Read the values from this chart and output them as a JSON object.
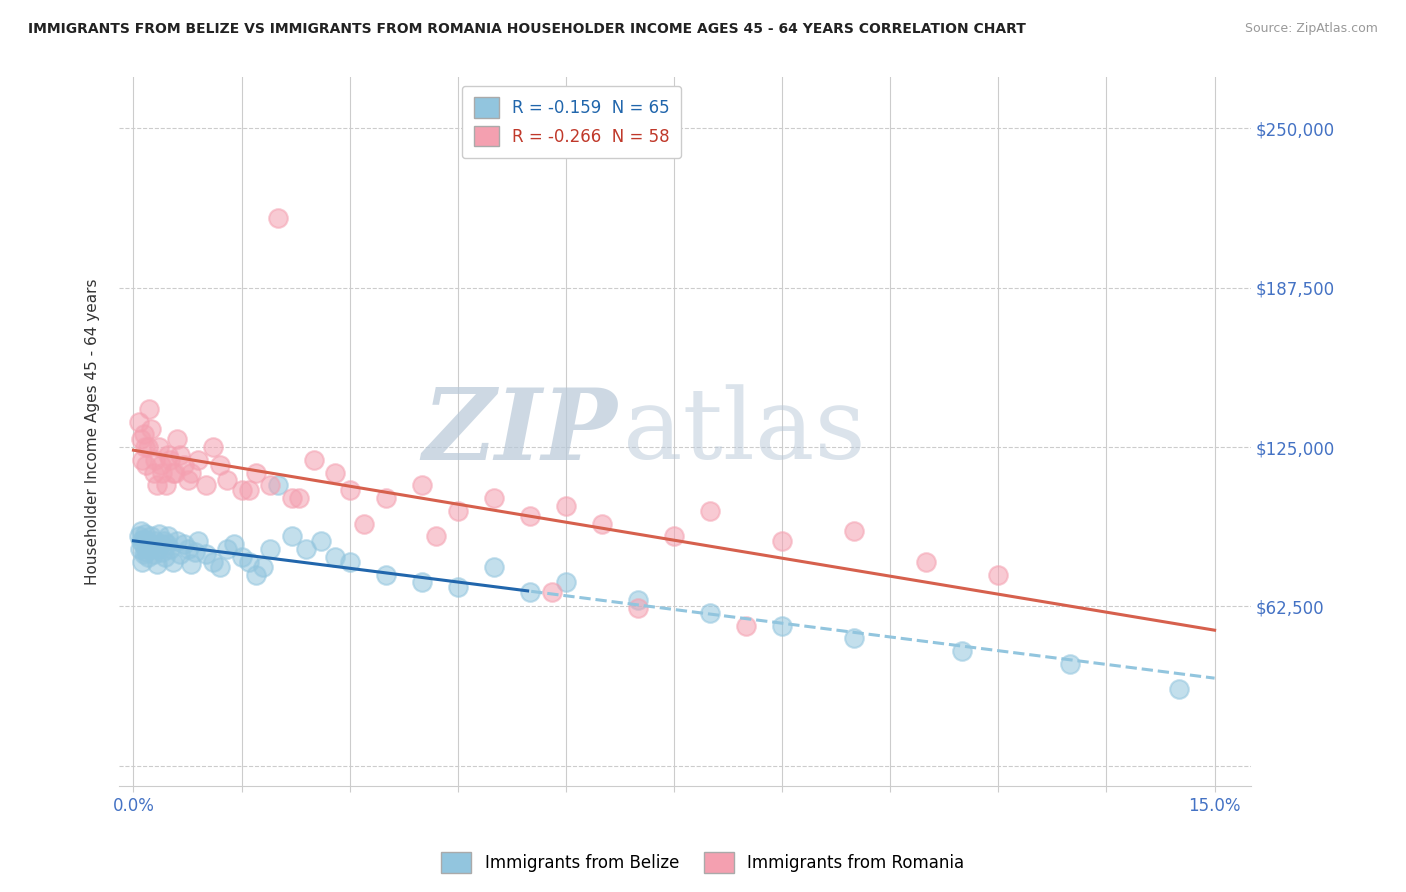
{
  "title": "IMMIGRANTS FROM BELIZE VS IMMIGRANTS FROM ROMANIA HOUSEHOLDER INCOME AGES 45 - 64 YEARS CORRELATION CHART",
  "source": "Source: ZipAtlas.com",
  "ylabel": "Householder Income Ages 45 - 64 years",
  "xlim": [
    0.0,
    15.0
  ],
  "ylim": [
    0,
    262500
  ],
  "yticks": [
    62500,
    125000,
    187500,
    250000
  ],
  "ytick_labels": [
    "$62,500",
    "$125,000",
    "$187,500",
    "$250,000"
  ],
  "legend_belize": "R = -0.159  N = 65",
  "legend_romania": "R = -0.266  N = 58",
  "color_belize": "#92c5de",
  "color_romania": "#f4a0b0",
  "trendline_belize_solid_color": "#2166ac",
  "trendline_belize_dash_color": "#92c5de",
  "trendline_romania_color": "#d6604d",
  "watermark_zip": "ZIP",
  "watermark_atlas": "atlas",
  "belize_x": [
    0.08,
    0.09,
    0.1,
    0.11,
    0.12,
    0.13,
    0.14,
    0.15,
    0.16,
    0.17,
    0.18,
    0.19,
    0.2,
    0.22,
    0.24,
    0.26,
    0.28,
    0.3,
    0.32,
    0.34,
    0.36,
    0.38,
    0.4,
    0.42,
    0.44,
    0.46,
    0.48,
    0.5,
    0.55,
    0.6,
    0.65,
    0.7,
    0.75,
    0.8,
    0.85,
    0.9,
    1.0,
    1.1,
    1.2,
    1.3,
    1.4,
    1.5,
    1.6,
    1.7,
    1.8,
    1.9,
    2.0,
    2.2,
    2.4,
    2.6,
    2.8,
    3.0,
    3.5,
    4.0,
    4.5,
    5.0,
    5.5,
    6.0,
    7.0,
    8.0,
    9.0,
    10.0,
    11.5,
    13.0,
    14.5
  ],
  "belize_y": [
    90000,
    85000,
    88000,
    92000,
    80000,
    87000,
    83000,
    89000,
    91000,
    84000,
    86000,
    88000,
    82000,
    85000,
    90000,
    87000,
    83000,
    88000,
    79000,
    85000,
    91000,
    87000,
    84000,
    88000,
    82000,
    87000,
    90000,
    85000,
    80000,
    88000,
    83000,
    87000,
    85000,
    79000,
    84000,
    88000,
    83000,
    80000,
    78000,
    85000,
    87000,
    82000,
    80000,
    75000,
    78000,
    85000,
    110000,
    90000,
    85000,
    88000,
    82000,
    80000,
    75000,
    72000,
    70000,
    78000,
    68000,
    72000,
    65000,
    60000,
    55000,
    50000,
    45000,
    40000,
    30000
  ],
  "romania_x": [
    0.08,
    0.1,
    0.12,
    0.14,
    0.16,
    0.18,
    0.2,
    0.22,
    0.25,
    0.28,
    0.3,
    0.32,
    0.35,
    0.38,
    0.4,
    0.45,
    0.5,
    0.55,
    0.6,
    0.65,
    0.7,
    0.75,
    0.8,
    0.9,
    1.0,
    1.1,
    1.2,
    1.3,
    1.5,
    1.7,
    1.9,
    2.0,
    2.2,
    2.5,
    2.8,
    3.0,
    3.5,
    4.0,
    4.5,
    5.0,
    5.5,
    6.0,
    6.5,
    7.5,
    8.0,
    9.0,
    10.0,
    11.0,
    12.0,
    0.48,
    0.58,
    1.6,
    2.3,
    3.2,
    4.2,
    5.8,
    8.5,
    7.0
  ],
  "romania_y": [
    135000,
    128000,
    120000,
    130000,
    125000,
    118000,
    125000,
    140000,
    132000,
    115000,
    120000,
    110000,
    125000,
    118000,
    115000,
    110000,
    120000,
    115000,
    128000,
    122000,
    118000,
    112000,
    115000,
    120000,
    110000,
    125000,
    118000,
    112000,
    108000,
    115000,
    110000,
    215000,
    105000,
    120000,
    115000,
    108000,
    105000,
    110000,
    100000,
    105000,
    98000,
    102000,
    95000,
    90000,
    100000,
    88000,
    92000,
    80000,
    75000,
    122000,
    115000,
    108000,
    105000,
    95000,
    90000,
    68000,
    55000,
    62000
  ]
}
